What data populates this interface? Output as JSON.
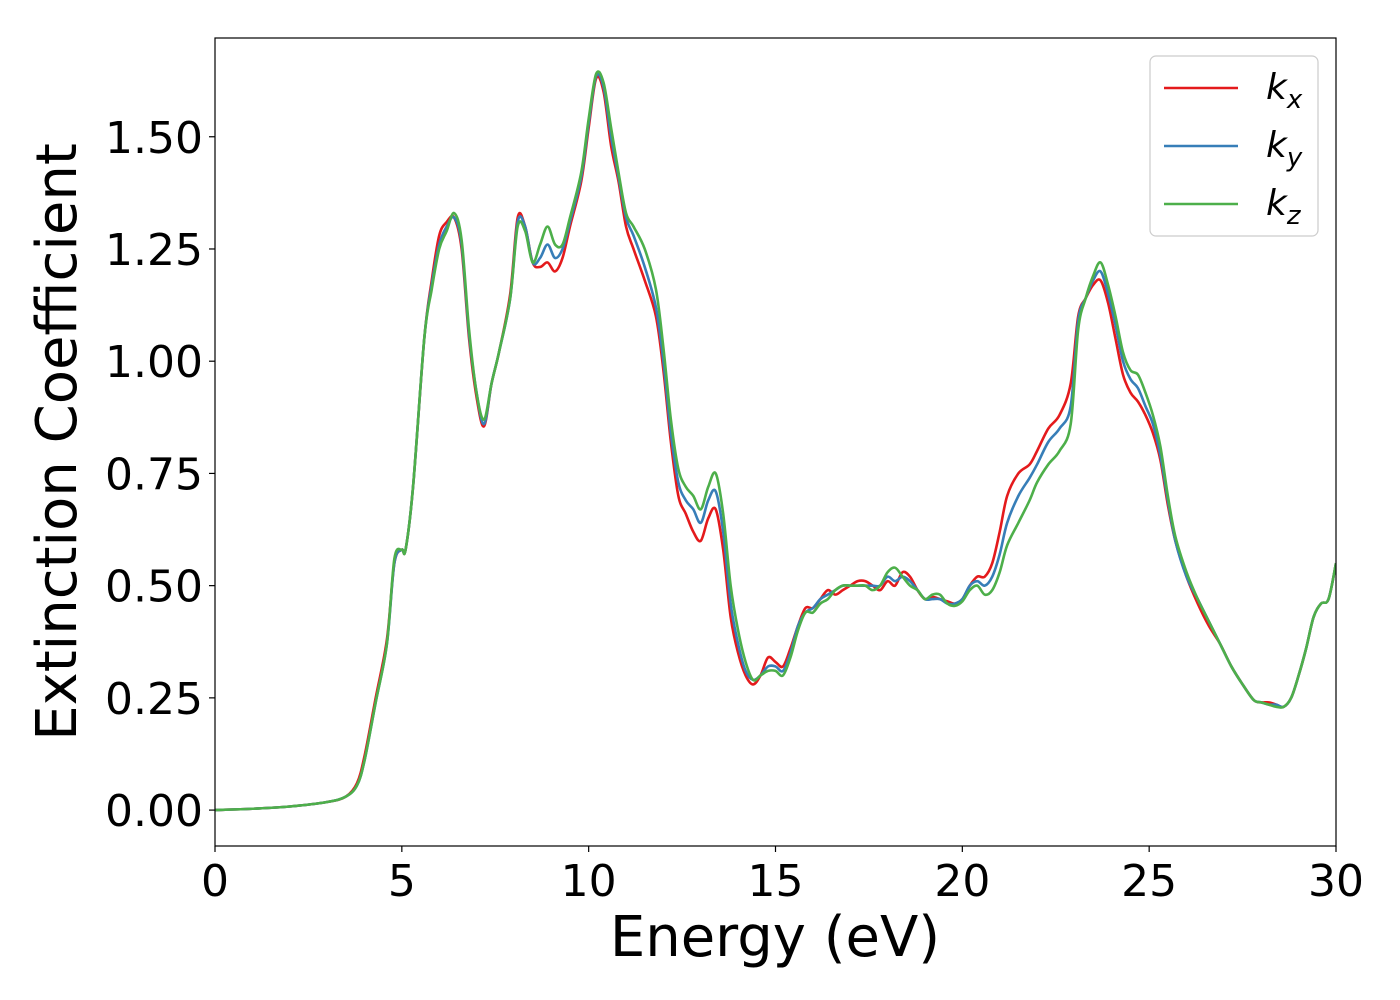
{
  "chart_data": {
    "type": "line",
    "title": "",
    "xlabel": "Energy (eV)",
    "ylabel": "Extinction Coefficient",
    "xlim": [
      0,
      30
    ],
    "ylim": [
      -0.08,
      1.72
    ],
    "xticks": [
      0,
      5,
      10,
      15,
      20,
      25,
      30
    ],
    "xtick_labels": [
      "0",
      "5",
      "10",
      "15",
      "20",
      "25",
      "30"
    ],
    "yticks": [
      0.0,
      0.25,
      0.5,
      0.75,
      1.0,
      1.25,
      1.5
    ],
    "ytick_labels": [
      "0.00",
      "0.25",
      "0.50",
      "0.75",
      "1.00",
      "1.25",
      "1.50"
    ],
    "grid": false,
    "legend_position": "top-right",
    "x": [
      0,
      1,
      2,
      3,
      3.5,
      3.8,
      4.0,
      4.3,
      4.6,
      4.8,
      5.0,
      5.1,
      5.3,
      5.6,
      5.8,
      6.0,
      6.2,
      6.4,
      6.6,
      6.8,
      7.0,
      7.2,
      7.4,
      7.6,
      7.9,
      8.1,
      8.3,
      8.5,
      8.7,
      8.9,
      9.1,
      9.3,
      9.5,
      9.8,
      10.0,
      10.2,
      10.4,
      10.6,
      10.8,
      11.0,
      11.2,
      11.5,
      11.8,
      12.0,
      12.2,
      12.4,
      12.6,
      12.8,
      13.0,
      13.2,
      13.4,
      13.6,
      13.8,
      14.0,
      14.2,
      14.4,
      14.6,
      14.8,
      15.0,
      15.2,
      15.4,
      15.6,
      15.8,
      16.0,
      16.2,
      16.4,
      16.6,
      16.8,
      17.0,
      17.2,
      17.4,
      17.6,
      17.8,
      18.0,
      18.2,
      18.4,
      18.6,
      18.8,
      19.0,
      19.2,
      19.4,
      19.6,
      19.8,
      20.0,
      20.2,
      20.4,
      20.6,
      20.8,
      21.0,
      21.2,
      21.5,
      21.8,
      22.0,
      22.3,
      22.6,
      22.9,
      23.1,
      23.3,
      23.5,
      23.7,
      23.9,
      24.1,
      24.3,
      24.5,
      24.7,
      24.9,
      25.1,
      25.3,
      25.5,
      25.7,
      26.0,
      26.3,
      26.6,
      26.9,
      27.2,
      27.5,
      27.8,
      28.0,
      28.2,
      28.4,
      28.6,
      28.8,
      29.0,
      29.2,
      29.4,
      29.6,
      29.8,
      30.0
    ],
    "series": [
      {
        "name": "k_x",
        "color": "#e41a1c",
        "values": [
          0.0,
          0.003,
          0.008,
          0.018,
          0.03,
          0.06,
          0.12,
          0.25,
          0.38,
          0.55,
          0.58,
          0.58,
          0.72,
          1.05,
          1.18,
          1.28,
          1.31,
          1.32,
          1.25,
          1.05,
          0.92,
          0.855,
          0.95,
          1.02,
          1.15,
          1.32,
          1.3,
          1.22,
          1.21,
          1.22,
          1.2,
          1.23,
          1.3,
          1.4,
          1.52,
          1.63,
          1.6,
          1.48,
          1.4,
          1.3,
          1.25,
          1.18,
          1.1,
          0.98,
          0.82,
          0.7,
          0.66,
          0.62,
          0.6,
          0.65,
          0.67,
          0.58,
          0.43,
          0.35,
          0.3,
          0.28,
          0.3,
          0.34,
          0.33,
          0.32,
          0.36,
          0.41,
          0.45,
          0.45,
          0.47,
          0.49,
          0.48,
          0.49,
          0.5,
          0.51,
          0.51,
          0.5,
          0.49,
          0.51,
          0.5,
          0.53,
          0.52,
          0.49,
          0.47,
          0.475,
          0.47,
          0.465,
          0.46,
          0.47,
          0.5,
          0.52,
          0.52,
          0.55,
          0.62,
          0.7,
          0.75,
          0.77,
          0.8,
          0.85,
          0.88,
          0.95,
          1.1,
          1.14,
          1.17,
          1.18,
          1.13,
          1.05,
          0.97,
          0.93,
          0.91,
          0.88,
          0.84,
          0.78,
          0.68,
          0.6,
          0.52,
          0.46,
          0.41,
          0.37,
          0.32,
          0.28,
          0.245,
          0.24,
          0.24,
          0.235,
          0.23,
          0.25,
          0.3,
          0.36,
          0.43,
          0.46,
          0.47,
          0.55
        ]
      },
      {
        "name": "k_y",
        "color": "#377eb8",
        "values": [
          0.0,
          0.003,
          0.008,
          0.018,
          0.03,
          0.055,
          0.11,
          0.24,
          0.37,
          0.55,
          0.58,
          0.58,
          0.72,
          1.05,
          1.17,
          1.26,
          1.3,
          1.32,
          1.26,
          1.06,
          0.93,
          0.86,
          0.95,
          1.02,
          1.14,
          1.31,
          1.3,
          1.22,
          1.23,
          1.26,
          1.23,
          1.25,
          1.31,
          1.41,
          1.53,
          1.635,
          1.61,
          1.5,
          1.41,
          1.32,
          1.28,
          1.21,
          1.12,
          1.0,
          0.84,
          0.73,
          0.69,
          0.67,
          0.64,
          0.69,
          0.71,
          0.62,
          0.46,
          0.37,
          0.31,
          0.29,
          0.3,
          0.32,
          0.32,
          0.31,
          0.35,
          0.41,
          0.44,
          0.45,
          0.47,
          0.48,
          0.49,
          0.5,
          0.5,
          0.5,
          0.5,
          0.5,
          0.5,
          0.52,
          0.51,
          0.52,
          0.51,
          0.49,
          0.47,
          0.47,
          0.47,
          0.46,
          0.46,
          0.47,
          0.5,
          0.51,
          0.5,
          0.52,
          0.57,
          0.64,
          0.7,
          0.74,
          0.77,
          0.82,
          0.85,
          0.9,
          1.09,
          1.14,
          1.18,
          1.2,
          1.15,
          1.08,
          1.0,
          0.96,
          0.94,
          0.9,
          0.86,
          0.79,
          0.69,
          0.6,
          0.52,
          0.47,
          0.42,
          0.37,
          0.32,
          0.28,
          0.245,
          0.24,
          0.235,
          0.235,
          0.23,
          0.25,
          0.3,
          0.36,
          0.43,
          0.46,
          0.47,
          0.55
        ]
      },
      {
        "name": "k_z",
        "color": "#4daf4a",
        "values": [
          0.0,
          0.003,
          0.008,
          0.018,
          0.03,
          0.055,
          0.11,
          0.24,
          0.37,
          0.56,
          0.58,
          0.58,
          0.72,
          1.05,
          1.16,
          1.25,
          1.29,
          1.33,
          1.27,
          1.07,
          0.93,
          0.87,
          0.95,
          1.02,
          1.14,
          1.3,
          1.29,
          1.22,
          1.26,
          1.3,
          1.26,
          1.26,
          1.32,
          1.42,
          1.54,
          1.64,
          1.62,
          1.52,
          1.42,
          1.33,
          1.3,
          1.25,
          1.16,
          1.03,
          0.87,
          0.76,
          0.72,
          0.7,
          0.67,
          0.72,
          0.75,
          0.66,
          0.5,
          0.4,
          0.33,
          0.29,
          0.3,
          0.31,
          0.31,
          0.3,
          0.34,
          0.4,
          0.44,
          0.44,
          0.46,
          0.47,
          0.49,
          0.5,
          0.5,
          0.5,
          0.5,
          0.49,
          0.5,
          0.53,
          0.54,
          0.52,
          0.5,
          0.49,
          0.47,
          0.48,
          0.48,
          0.46,
          0.455,
          0.465,
          0.49,
          0.5,
          0.48,
          0.49,
          0.53,
          0.59,
          0.64,
          0.69,
          0.73,
          0.77,
          0.8,
          0.86,
          1.07,
          1.14,
          1.19,
          1.22,
          1.17,
          1.1,
          1.02,
          0.98,
          0.97,
          0.93,
          0.88,
          0.81,
          0.7,
          0.61,
          0.53,
          0.47,
          0.42,
          0.37,
          0.32,
          0.28,
          0.245,
          0.24,
          0.235,
          0.23,
          0.23,
          0.25,
          0.3,
          0.36,
          0.43,
          0.46,
          0.47,
          0.55
        ]
      }
    ],
    "legend": [
      {
        "symbol": "k",
        "subscript": "x",
        "color": "#e41a1c"
      },
      {
        "symbol": "k",
        "subscript": "y",
        "color": "#377eb8"
      },
      {
        "symbol": "k",
        "subscript": "z",
        "color": "#4daf4a"
      }
    ]
  }
}
